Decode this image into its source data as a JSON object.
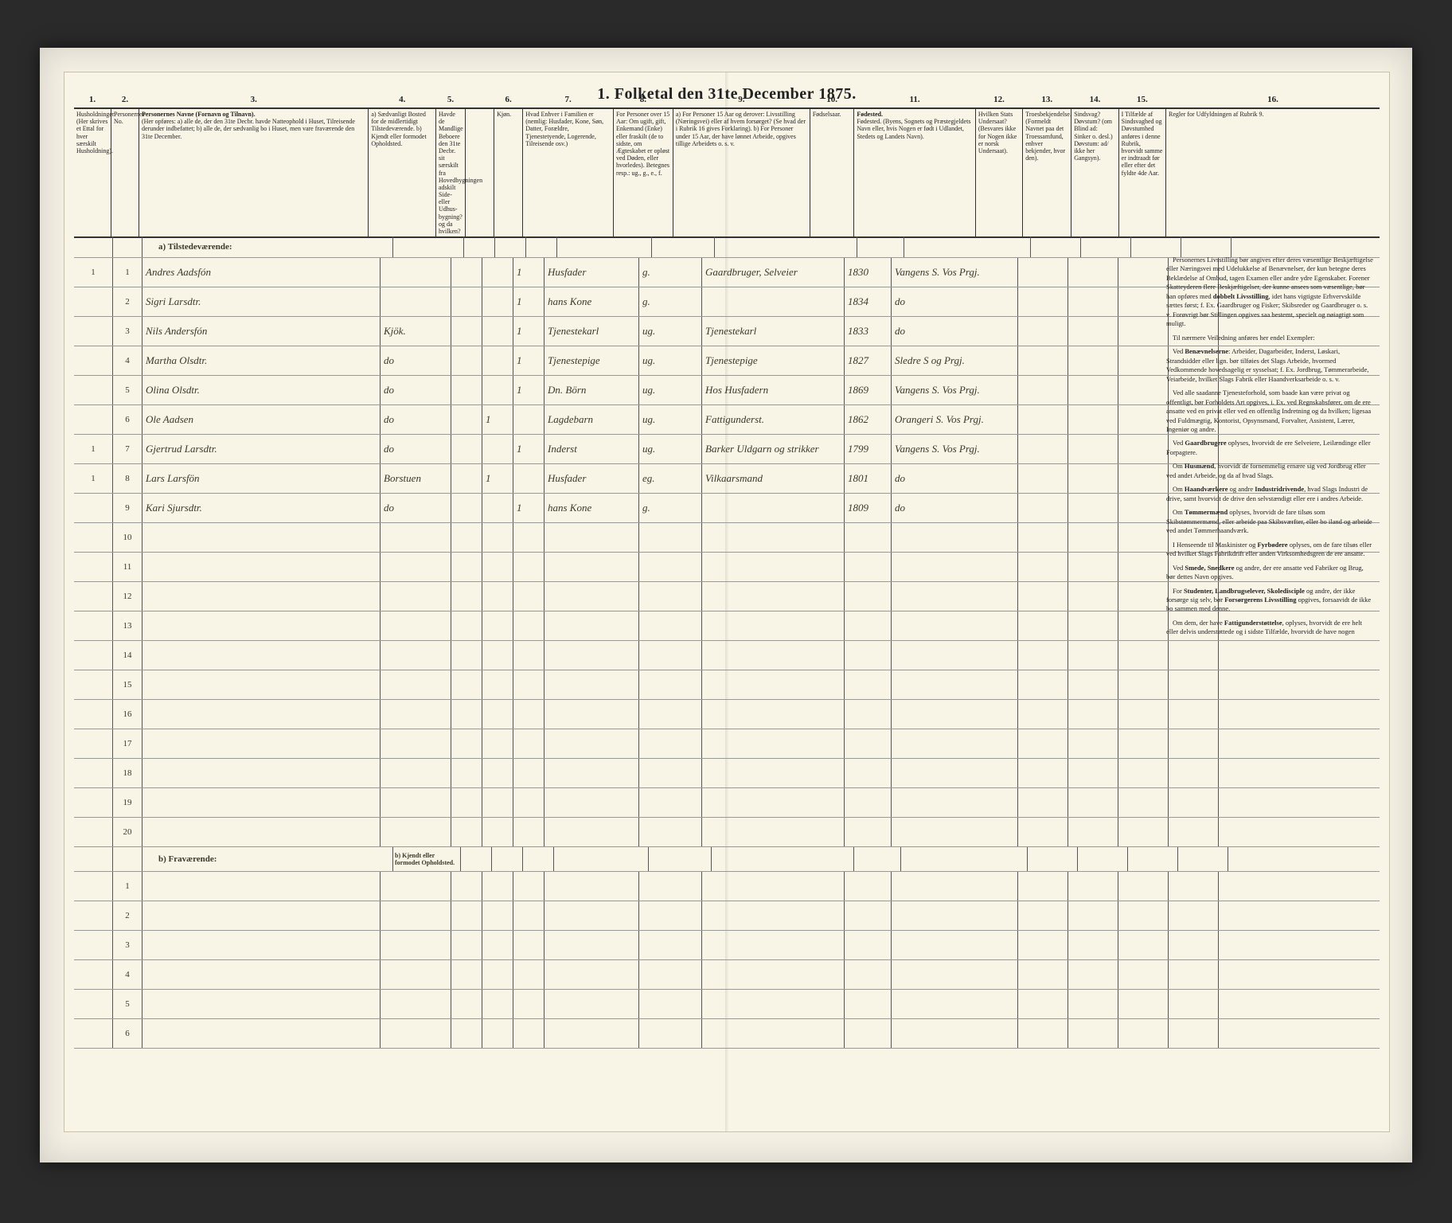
{
  "title": "1. Folketal den 31te December 1875.",
  "columns": {
    "1": "Husholdninger.",
    "1_sub": "(Her skrives et Ettal for hver særskilt Husholdning).",
    "2": "Personernes No.",
    "3": "Personernes Navne (Fornavn og Tilnavn).",
    "3_sub": "(Her opføres: a) alle de, der den 31te Decbr. havde Natteophold i Huset, Tilreisende derunder indbefattet; b) alle de, der sædvanlig bo i Huset, men vare fraværende den 31te December.",
    "4": "a) Sædvanligt Bosted for de midlertidigt Tilstedeværende. b) Kjendt eller formodet Opholdsted.",
    "5": "Havde de Mandlige Beboere den 31te Decbr. sit særskilt fra Hovedbygningen adskilt Side- eller Udhus-bygning? og da hvilken?",
    "6": "Kjøn.",
    "7": "Hvad Enhver i Familien er (nemlig: Husfader, Kone, Søn, Datter, Forældre, Tjenestetyende, Logerende, Tilreisende osv.)",
    "8": "For Personer over 15 Aar: Om ugift, gift, Enkemand (Enke) eller fraskilt (de to sidste, om Ægteskabet er opløst ved Døden, eller hvorledes). Betegnes resp.: ug., g., e., f.",
    "9": "a) For Personer 15 Aar og derover: Livsstilling (Næringsvei) eller af hvem forsørget? (Se hvad der i Rubrik 16 gives Forklaring). b) For Personer under 15 Aar, der have lønnet Arbeide, opgives tillige Arbeidets o. s. v.",
    "10": "Fødselsaar.",
    "11": "Fødested. (Byens, Sognets og Præstegjeldets Navn eller, hvis Nogen er født i Udlandet, Stedets og Landets Navn).",
    "12": "Hvilken Stats Undersaat? (Besvares ikke for Nogen ikke er norsk Undersaat).",
    "13": "Troesbekjendelse. (Formeldt Navnet paa det Troessamfund, enhver bekjender, hvor den).",
    "14": "Sindsvag? Døvstum? (om Blind ad: Sinker o. desl.) Døvstum: ad/ ikke her Gangsyn).",
    "15": "I Tilfælde af Sindsvaghed og Døvstumhed anføres i denne Rubrik, hvorvidt samme er indtraadt før eller efter det fyldte 4de Aar.",
    "16": "Regler for Udfyldningen af Rubrik 9."
  },
  "section_a": "a) Tilstedeværende:",
  "section_b": "b) Fraværende:",
  "section_b_col4": "b) Kjendt eller formodet Opholdsted.",
  "rows": [
    {
      "h": "1",
      "n": "1",
      "name": "Andres Aadsfón",
      "c4": "",
      "c5": "",
      "c5b": "",
      "c6": "1",
      "c7": "Husfader",
      "c8": "g.",
      "c9": "Gaardbruger, Selveier",
      "c10": "1830",
      "c11": "Vangens S. Vos Prgj."
    },
    {
      "h": "",
      "n": "2",
      "name": "Sigri Larsdtr.",
      "c4": "",
      "c5": "",
      "c5b": "",
      "c6": "1",
      "c7": "hans Kone",
      "c8": "g.",
      "c9": "",
      "c10": "1834",
      "c11": "do"
    },
    {
      "h": "",
      "n": "3",
      "name": "Nils Andersfón",
      "c4": "Kjök.",
      "c5": "",
      "c5b": "",
      "c6": "1",
      "c7": "Tjenestekarl",
      "c8": "ug.",
      "c9": "Tjenestekarl",
      "c10": "1833",
      "c11": "do"
    },
    {
      "h": "",
      "n": "4",
      "name": "Martha Olsdtr.",
      "c4": "do",
      "c5": "",
      "c5b": "",
      "c6": "1",
      "c7": "Tjenestepige",
      "c8": "ug.",
      "c9": "Tjenestepige",
      "c10": "1827",
      "c11": "Sledre S og Prgj."
    },
    {
      "h": "",
      "n": "5",
      "name": "Olina Olsdtr.",
      "c4": "do",
      "c5": "",
      "c5b": "",
      "c6": "1",
      "c7": "Dn. Börn",
      "c8": "ug.",
      "c9": "Hos Husfadern",
      "c10": "1869",
      "c11": "Vangens S. Vos Prgj."
    },
    {
      "h": "",
      "n": "6",
      "name": "Ole Aadsen",
      "c4": "do",
      "c5": "",
      "c5b": "1",
      "c6": "",
      "c7": "Lagdebarn",
      "c8": "ug.",
      "c9": "Fattigunderst.",
      "c10": "1862",
      "c11": "Orangeri S. Vos Prgj."
    },
    {
      "h": "1",
      "n": "7",
      "name": "Gjertrud Larsdtr.",
      "c4": "do",
      "c5": "",
      "c5b": "",
      "c6": "1",
      "c7": "Inderst",
      "c8": "ug.",
      "c9": "Barker Uldgarn og strikker",
      "c10": "1799",
      "c11": "Vangens S. Vos Prgj."
    },
    {
      "h": "1",
      "n": "8",
      "name": "Lars Larsfön",
      "c4": "Borstuen",
      "c5": "",
      "c5b": "1",
      "c6": "",
      "c7": "Husfader",
      "c8": "eg.",
      "c9": "Vilkaarsmand",
      "c10": "1801",
      "c11": "do"
    },
    {
      "h": "",
      "n": "9",
      "name": "Kari Sjursdtr.",
      "c4": "do",
      "c5": "",
      "c5b": "",
      "c6": "1",
      "c7": "hans Kone",
      "c8": "g.",
      "c9": "",
      "c10": "1809",
      "c11": "do"
    }
  ],
  "empty_rows_a": [
    "10",
    "11",
    "12",
    "13",
    "14",
    "15",
    "16",
    "17",
    "18",
    "19",
    "20"
  ],
  "empty_rows_b": [
    "1",
    "2",
    "3",
    "4",
    "5",
    "6"
  ],
  "rubrik_paragraphs": [
    "Personernes Livsstilling bør angives efter deres væsentlige Beskjæftigelse eller Næringsvei med Udelukkelse af Benævnelser, der kun betegne deres Beklædelse af Ombud, tagen Examen eller andre ydre Egenskaber. Forener Skatteyderen flere Beskjæftigelser, der kunne ansees som væsentlige, bør han opføres med <b>dobbelt Livsstilling</b>, idet hans vigtigste Erhvervskilde sættes først; f. Ex. Gaardbruger og Fisker; Skibsreder og Gaardbruger o. s. v. Forøvrigt bør Stillingen opgives saa bestemt, specielt og nøiagtigt som muligt.",
    "Til nærmere Veiledning anføres her endel Exempler:",
    "Ved <b>Benævnelserne</b>: Arbeider, Dagarbeider, Inderst, Løskari, Strandsidder eller lign. bør tilføies det Slags Arbeide, hvormed Vedkommende hovedsagelig er sysselsat; f. Ex. Jordbrug, Tømmerarbeide, Veiarbeide, hvilket Slags Fabrik eller Haandverksarbeide o. s. v.",
    "Ved alle saadanne Tjenesteforhold, som baade kan være privat og offentligt, bør Forholdets Art opgives, i. Ex. ved Regnskabsfører, om de ere ansatte ved en privat eller ved en offentlig Indretning og da hvilken; ligesaa ved Fuldmægtig, Kontorist, Opsynsmand, Forvalter, Assistent, Lærer, Ingeniør og andre.",
    "Ved <b>Gaardbrugere</b> oplyses, hvorvidt de ere Selveiere, Leilændinge eller Forpagtere.",
    "Om <b>Husmænd</b>, hvorvidt de fornemmelig ernære sig ved Jordbrug eller ved andet Arbeide, og da af hvad Slags.",
    "Om <b>Haandværkere</b> og andre <b>Industridrivende</b>, hvad Slags Industri de drive, samt hvorvidt de drive den selvstændigt eller ere i andres Arbeide.",
    "Om <b>Tømmermænd</b> oplyses, hvorvidt de fare tilsøs som Skibstømmermænd, eller arbeide paa Skibsværfter, eller bo iland og arbeide ved andet Tømmerhaandværk.",
    "I Henseende til Maskinister og <b>Fyrbødere</b> oplyses, om de fare tilsøs eller ved hvilket Slags Fabrikdrift eller anden Virksomhedsgren de ere ansatte.",
    "Ved <b>Smede, Snedkere</b> og andre, der ere ansatte ved Fabriker og Brug, bør dettes Navn opgives.",
    "For <b>Studenter, Landbrugselever, Skoledisciple</b> og andre, der ikke forsørge sig selv, bør <b>Forsørgerens Livsstilling</b> opgives, forsaavidt de ikke bo sammen med denne.",
    "Om dem, der have <b>Fattigunderstøttelse</b>, oplyses, hvorvidt de ere helt eller delvis understøttede og i sidste Tilfælde, hvorvidt de have nogen"
  ]
}
